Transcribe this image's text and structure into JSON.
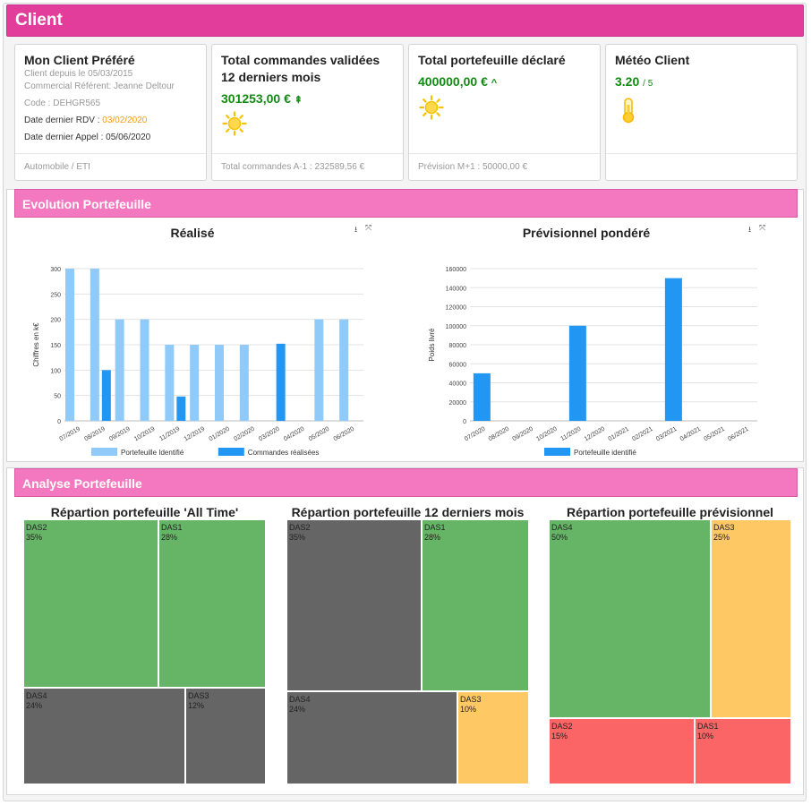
{
  "header": {
    "title": "Client"
  },
  "cards": {
    "client": {
      "title": "Mon Client Préféré",
      "since": "Client depuis le 05/03/2015",
      "commercial": "Commercial Référent: Jeanne Deltour",
      "code": "Code : DEHGR565",
      "rdv_label": "Date dernier RDV : ",
      "rdv_date": "03/02/2020",
      "appel": "Date dernier Appel : 05/06/2020",
      "footer": "Automobile / ETI"
    },
    "commandes": {
      "title": "Total commandes validées 12 derniers mois",
      "value": "301253,00 €",
      "arrow": "⇞",
      "icon": "sun-icon",
      "footer": "Total commandes A-1 : 232589,56 €"
    },
    "portefeuille": {
      "title": "Total portefeuille déclaré",
      "value": "400000,00 €",
      "arrow": "^",
      "icon": "sun-icon",
      "footer": "Prévision M+1 : 50000,00 €"
    },
    "meteo": {
      "title": "Météo Client",
      "value": "3.20",
      "scale": "/ 5",
      "icon": "thermometer-icon"
    }
  },
  "evolution": {
    "title": "Evolution Portefeuille",
    "download_icon": "⭳",
    "expand_icon": "⤧"
  },
  "analyse": {
    "title": "Analyse Portefeuille"
  },
  "colors": {
    "header": "#e23d9b",
    "panel": "#f478bf",
    "light_blue": "#90caf9",
    "blue": "#2196f3",
    "green": "#66b566",
    "grey": "#656565",
    "yellow": "#fec865",
    "red": "#fc6565"
  },
  "chart_data": [
    {
      "type": "bar",
      "title": "Réalisé",
      "ylabel": "Chiffres en k€",
      "xlabel": "",
      "ylim": [
        0,
        300
      ],
      "yticks": [
        0,
        50,
        100,
        150,
        200,
        250,
        300
      ],
      "categories": [
        "07/2019",
        "08/2019",
        "09/2019",
        "10/2019",
        "11/2019",
        "12/2019",
        "01/2020",
        "02/2020",
        "03/2020",
        "04/2020",
        "05/2020",
        "06/2020"
      ],
      "series": [
        {
          "name": "Portefeuille Identifié",
          "color": "#90caf9",
          "values": [
            300,
            300,
            200,
            200,
            150,
            150,
            150,
            150,
            0,
            0,
            200,
            200
          ]
        },
        {
          "name": "Commandes réalisées",
          "color": "#2196f3",
          "values": [
            0,
            100,
            0,
            0,
            48,
            0,
            0,
            0,
            152,
            0,
            0,
            0
          ]
        }
      ],
      "legend": "bottom"
    },
    {
      "type": "bar",
      "title": "Prévisionnel pondéré",
      "ylabel": "Poids livré",
      "xlabel": "",
      "ylim": [
        0,
        160000
      ],
      "yticks": [
        0,
        20000,
        40000,
        60000,
        80000,
        100000,
        120000,
        140000,
        160000
      ],
      "categories": [
        "07/2020",
        "08/2020",
        "09/2020",
        "10/2020",
        "11/2020",
        "12/2020",
        "01/2021",
        "02/2021",
        "03/2021",
        "04/2021",
        "05/2021",
        "06/2021"
      ],
      "series": [
        {
          "name": "Portefeuille identifié",
          "color": "#2196f3",
          "values": [
            50000,
            0,
            0,
            0,
            100000,
            0,
            0,
            0,
            150000,
            0,
            0,
            0
          ]
        }
      ],
      "legend": "bottom"
    },
    {
      "type": "treemap",
      "title": "Répartion portefeuille 'All Time'",
      "items": [
        {
          "label": "DAS2",
          "value": 35,
          "text": "35%",
          "color": "#66b566"
        },
        {
          "label": "DAS1",
          "value": 28,
          "text": "28%",
          "color": "#66b566"
        },
        {
          "label": "DAS4",
          "value": 24,
          "text": "24%",
          "color": "#656565"
        },
        {
          "label": "DAS3",
          "value": 12,
          "text": "12%",
          "color": "#656565"
        }
      ]
    },
    {
      "type": "treemap",
      "title": "Répartion portefeuille 12 derniers mois",
      "items": [
        {
          "label": "DAS2",
          "value": 35,
          "text": "35%",
          "color": "#656565"
        },
        {
          "label": "DAS1",
          "value": 28,
          "text": "28%",
          "color": "#66b566"
        },
        {
          "label": "DAS4",
          "value": 24,
          "text": "24%",
          "color": "#656565"
        },
        {
          "label": "DAS3",
          "value": 10,
          "text": "10%",
          "color": "#fec865"
        }
      ]
    },
    {
      "type": "treemap",
      "title": "Répartion portefeuille prévisionnel",
      "items": [
        {
          "label": "DAS4",
          "value": 50,
          "text": "50%",
          "color": "#66b566"
        },
        {
          "label": "DAS3",
          "value": 25,
          "text": "25%",
          "color": "#fec865"
        },
        {
          "label": "DAS2",
          "value": 15,
          "text": "15%",
          "color": "#fc6565"
        },
        {
          "label": "DAS1",
          "value": 10,
          "text": "10%",
          "color": "#fc6565"
        }
      ]
    }
  ]
}
